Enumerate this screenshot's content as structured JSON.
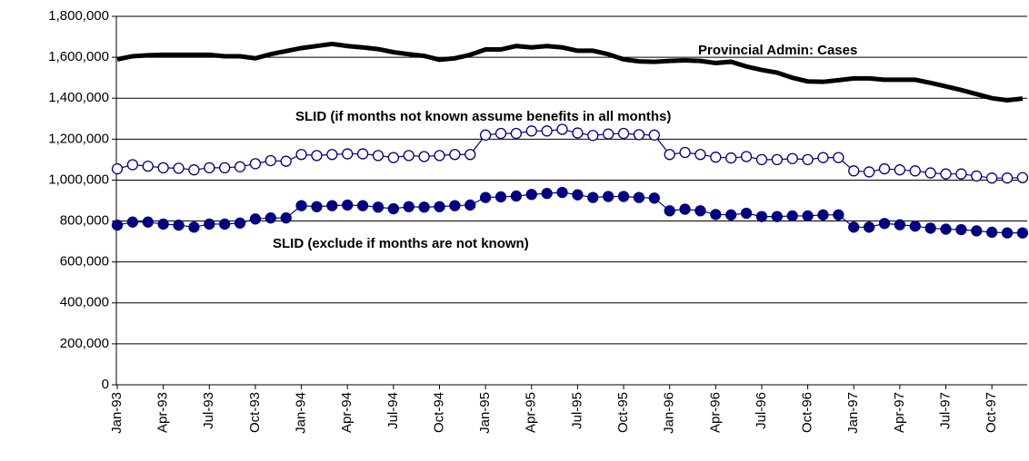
{
  "chart_data": {
    "type": "line",
    "categories": [
      "Jan-93",
      null,
      null,
      "Apr-93",
      null,
      null,
      "Jul-93",
      null,
      null,
      "Oct-93",
      null,
      null,
      "Jan-94",
      null,
      null,
      "Apr-94",
      null,
      null,
      "Jul-94",
      null,
      null,
      "Oct-94",
      null,
      null,
      "Jan-95",
      null,
      null,
      "Apr-95",
      null,
      null,
      "Jul-95",
      null,
      null,
      "Oct-95",
      null,
      null,
      "Jan-96",
      null,
      null,
      "Apr-96",
      null,
      null,
      "Jul-96",
      null,
      null,
      "Oct-96",
      null,
      null,
      "Jan-97",
      null,
      null,
      "Apr-97",
      null,
      null,
      "Jul-97",
      null,
      null,
      "Oct-97",
      null,
      null
    ],
    "series": [
      {
        "name": "Provincial Admin: Cases",
        "color": "#000000",
        "marker": "none",
        "values": [
          1590000,
          1605000,
          1610000,
          1612000,
          1612000,
          1612000,
          1612000,
          1605000,
          1605000,
          1595000,
          1615000,
          1630000,
          1645000,
          1655000,
          1665000,
          1655000,
          1648000,
          1640000,
          1625000,
          1615000,
          1607000,
          1588000,
          1595000,
          1612000,
          1638000,
          1638000,
          1655000,
          1648000,
          1655000,
          1648000,
          1632000,
          1632000,
          1615000,
          1590000,
          1580000,
          1578000,
          1582000,
          1585000,
          1582000,
          1572000,
          1578000,
          1555000,
          1538000,
          1525000,
          1500000,
          1482000,
          1480000,
          1488000,
          1497000,
          1497000,
          1490000,
          1490000,
          1490000,
          1475000,
          1458000,
          1440000,
          1420000,
          1400000,
          1390000,
          1398000
        ]
      },
      {
        "name": "SLID (if months not known assume benefits in all months)",
        "color": "#000080",
        "marker": "open-circle",
        "values": [
          1055000,
          1075000,
          1068000,
          1060000,
          1058000,
          1050000,
          1060000,
          1060000,
          1065000,
          1080000,
          1095000,
          1092000,
          1125000,
          1120000,
          1125000,
          1128000,
          1128000,
          1120000,
          1110000,
          1120000,
          1115000,
          1120000,
          1125000,
          1125000,
          1220000,
          1228000,
          1228000,
          1240000,
          1240000,
          1248000,
          1230000,
          1218000,
          1225000,
          1228000,
          1222000,
          1220000,
          1125000,
          1135000,
          1125000,
          1112000,
          1108000,
          1115000,
          1100000,
          1100000,
          1105000,
          1100000,
          1110000,
          1110000,
          1045000,
          1040000,
          1055000,
          1050000,
          1045000,
          1035000,
          1030000,
          1030000,
          1020000,
          1010000,
          1010000,
          1012000
        ]
      },
      {
        "name": "SLID (exclude if months are not known)",
        "color": "#000080",
        "marker": "filled-circle",
        "values": [
          780000,
          795000,
          795000,
          785000,
          780000,
          770000,
          785000,
          785000,
          790000,
          810000,
          815000,
          815000,
          875000,
          870000,
          875000,
          878000,
          875000,
          868000,
          860000,
          870000,
          868000,
          870000,
          875000,
          878000,
          915000,
          918000,
          922000,
          930000,
          935000,
          940000,
          928000,
          915000,
          920000,
          920000,
          915000,
          912000,
          850000,
          858000,
          850000,
          832000,
          830000,
          838000,
          822000,
          822000,
          825000,
          825000,
          830000,
          830000,
          770000,
          770000,
          788000,
          782000,
          775000,
          765000,
          760000,
          758000,
          752000,
          745000,
          742000,
          742000
        ]
      }
    ],
    "ylim": [
      0,
      1800000
    ],
    "yticks": [
      0,
      {
        "value": 200000,
        "label": "200,000"
      },
      {
        "value": 400000,
        "label": "400,000"
      },
      {
        "value": 600000,
        "label": "600,000"
      },
      {
        "value": 800000,
        "label": "800,000"
      },
      {
        "value": 1000000,
        "label": "1,000,000"
      },
      {
        "value": 1200000,
        "label": "1,200,000"
      },
      {
        "value": 1400000,
        "label": "1,400,000"
      },
      {
        "value": 1600000,
        "label": "1,600,000"
      },
      {
        "value": 1800000,
        "label": "1,800,000"
      }
    ],
    "grid": true
  }
}
